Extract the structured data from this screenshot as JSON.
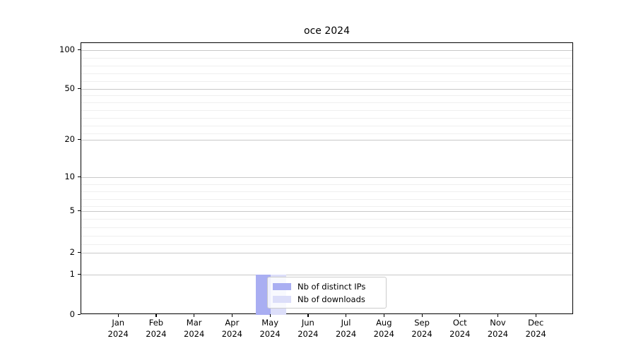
{
  "chart_data": {
    "type": "bar",
    "title": "oce 2024",
    "categories": [
      "Jan 2024",
      "Feb 2024",
      "Mar 2024",
      "Apr 2024",
      "May 2024",
      "Jun 2024",
      "Jul 2024",
      "Aug 2024",
      "Sep 2024",
      "Oct 2024",
      "Nov 2024",
      "Dec 2024"
    ],
    "series": [
      {
        "name": "Nb of distinct IPs",
        "color": "#a9aef2",
        "values": [
          0,
          0,
          0,
          0,
          1,
          0,
          0,
          0,
          0,
          0,
          0,
          0
        ]
      },
      {
        "name": "Nb of downloads",
        "color": "#dcdef9",
        "values": [
          0,
          0,
          0,
          0,
          1,
          0,
          0,
          0,
          0,
          0,
          0,
          0
        ]
      }
    ],
    "yticks": [
      100,
      50,
      20,
      10,
      5,
      2,
      1,
      0
    ],
    "yscale": "log-like",
    "ylim": [
      0,
      140
    ],
    "xlabel": "",
    "ylabel": "",
    "grid": "horizontal major and minor gridlines",
    "legend_position": "inside, lower center-left",
    "colors": {
      "axis": "#000000",
      "gridline_major": "#c8c8c8",
      "gridline_minor": "#efefef",
      "legend_border": "#cccccc"
    }
  }
}
